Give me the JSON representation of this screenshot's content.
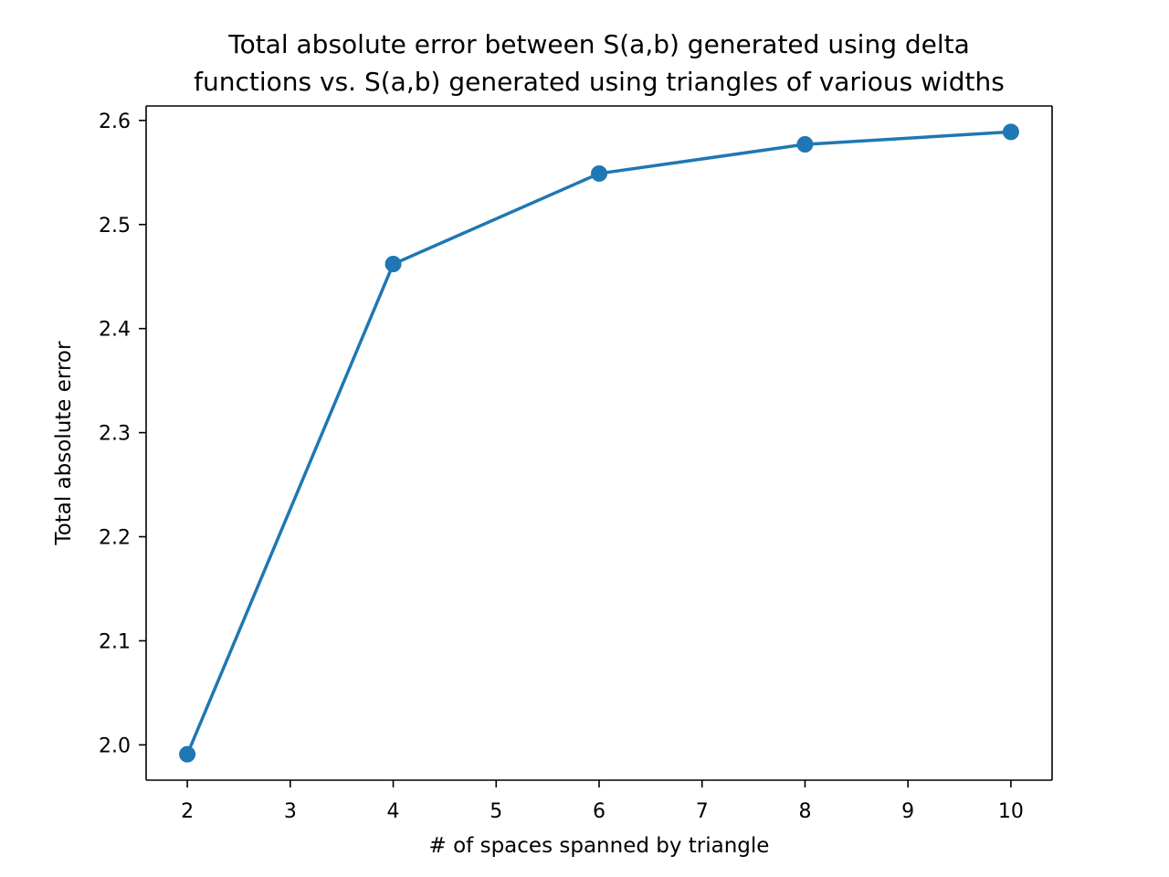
{
  "chart_data": {
    "type": "line",
    "title_lines": [
      "Total absolute error between S(a,b) generated using delta",
      "functions vs. S(a,b) generated using triangles of various widths"
    ],
    "xlabel": "# of spaces spanned by triangle",
    "ylabel": "Total absolute error",
    "x": [
      2,
      4,
      6,
      8,
      10
    ],
    "series": [
      {
        "values": [
          1.991,
          2.462,
          2.549,
          2.577,
          2.589
        ]
      }
    ],
    "xlim": [
      1.6,
      10.4
    ],
    "ylim": [
      1.9661,
      2.6139
    ],
    "xticks": [
      2,
      3,
      4,
      5,
      6,
      7,
      8,
      9,
      10
    ],
    "xtick_labels": [
      "2",
      "3",
      "4",
      "5",
      "6",
      "7",
      "8",
      "9",
      "10"
    ],
    "yticks": [
      2.0,
      2.1,
      2.2,
      2.3,
      2.4,
      2.5,
      2.6
    ],
    "ytick_labels": [
      "2.0",
      "2.1",
      "2.2",
      "2.3",
      "2.4",
      "2.5",
      "2.6"
    ],
    "markers": true,
    "grid": false,
    "legend": false,
    "colors": {
      "series": "#1f77b4",
      "axes": "#000000"
    }
  }
}
